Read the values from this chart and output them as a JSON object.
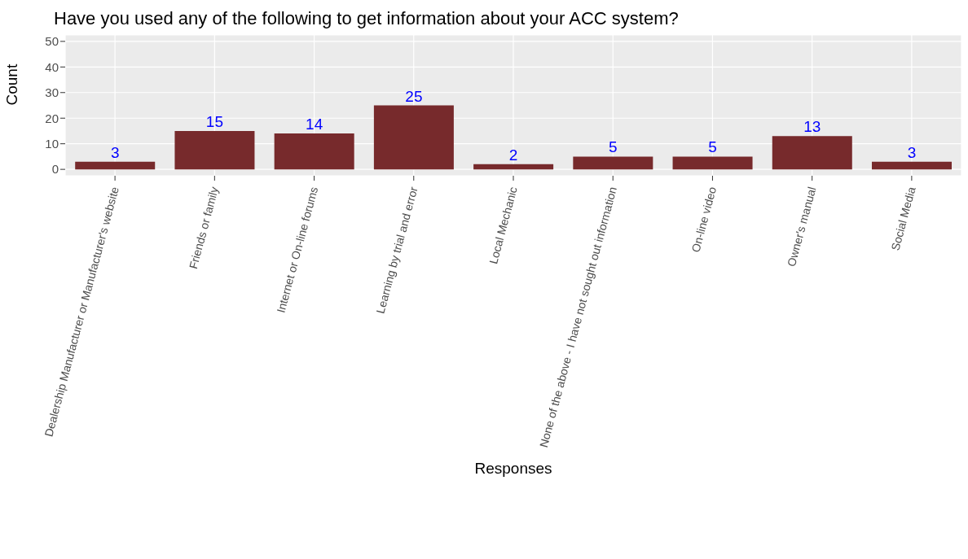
{
  "chart_data": {
    "type": "bar",
    "title": "Have you used any of the following to get information about your ACC system?",
    "xlabel": "Responses",
    "ylabel": "Count",
    "categories": [
      "Dealership Manufacturer or Manufacturer's website",
      "Friends or family",
      "Internet or On-line forums",
      "Learning by trial and error",
      "Local Mechanic",
      "None of the above - I have not sought out information",
      "On-line video",
      "Owner's manual",
      "Social Media"
    ],
    "values": [
      3,
      15,
      14,
      25,
      2,
      5,
      5,
      13,
      3
    ],
    "color": "#772a2c",
    "ylim": [
      -2.5,
      52.5
    ],
    "yticks": [
      0,
      10,
      20,
      30,
      40,
      50
    ],
    "grid": true,
    "data_labels": true
  }
}
